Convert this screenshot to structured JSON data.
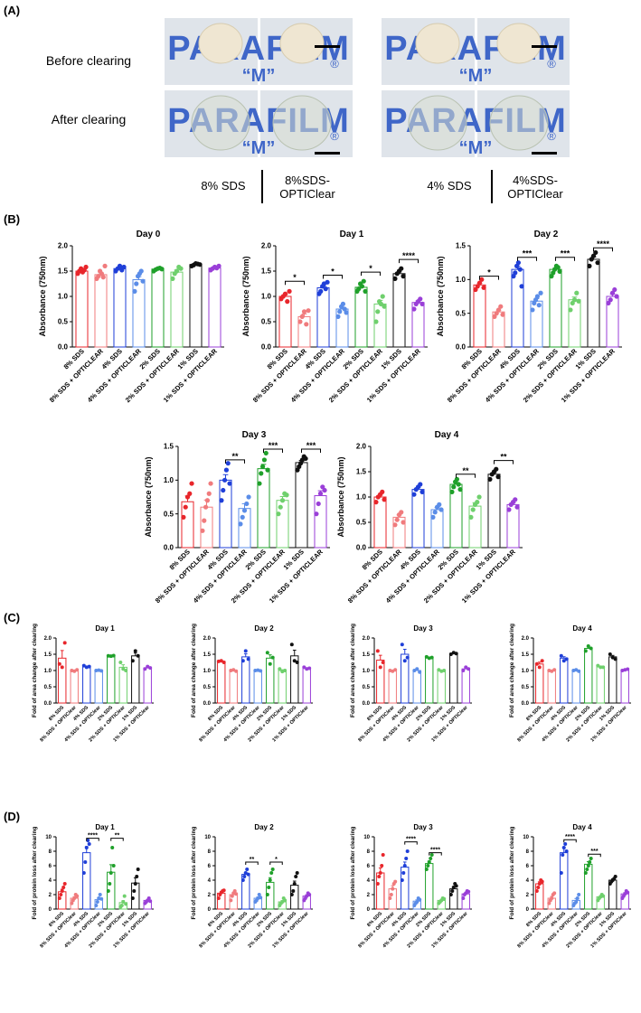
{
  "panels": {
    "A": {
      "letter": "(A)",
      "row_labels": [
        "Before clearing",
        "After clearing"
      ],
      "photo_text": "PARAFILM",
      "registered_mark": "®",
      "condition_labels": [
        "8% SDS",
        "8%SDS-\nOPTIClear",
        "4% SDS",
        "4%SDS-\nOPTIClear"
      ]
    },
    "B": {
      "letter": "(B)"
    },
    "C": {
      "letter": "(C)"
    },
    "D": {
      "letter": "(D)"
    }
  },
  "categories_B": [
    "8% SDS",
    "8% SDS + OPTICLEAR",
    "4% SDS",
    "4% SDS + OPTICLEAR",
    "2% SDS",
    "2% SDS + OPTICLEAR",
    "1% SDS",
    "1% SDS + OPTICLEAR"
  ],
  "categories_CD": [
    "8% SDS",
    "8% SDS + OPTIClear",
    "4% SDS",
    "4% SDS + OPTIClear",
    "2% SDS",
    "2% SDS + OPTIClear",
    "1% SDS",
    "1% SDS + OPTIClear"
  ],
  "colors": [
    "#e8262b",
    "#f07b7d",
    "#1f3fd8",
    "#5b8de8",
    "#1fa02a",
    "#6fd06d",
    "#111111",
    "#9a3fd8"
  ],
  "chart_data": [
    {
      "panel": "B",
      "type": "bar",
      "title": "Day 0",
      "ylabel": "Absorbance (750nm)",
      "ylim": [
        0,
        2.0
      ],
      "yticks": [
        0.0,
        0.5,
        1.0,
        1.5,
        2.0
      ],
      "values": [
        1.5,
        1.43,
        1.55,
        1.33,
        1.54,
        1.48,
        1.63,
        1.56
      ],
      "points": [
        [
          1.45,
          1.5,
          1.55,
          1.48,
          1.52,
          1.58
        ],
        [
          1.35,
          1.4,
          1.5,
          1.45,
          1.38,
          1.6
        ],
        [
          1.5,
          1.55,
          1.6,
          1.52,
          1.58
        ],
        [
          1.1,
          1.25,
          1.4,
          1.45,
          1.5,
          1.3
        ],
        [
          1.5,
          1.53,
          1.55,
          1.56,
          1.54
        ],
        [
          1.35,
          1.45,
          1.5,
          1.58,
          1.55
        ],
        [
          1.6,
          1.62,
          1.65,
          1.64,
          1.63
        ],
        [
          1.52,
          1.55,
          1.58,
          1.56,
          1.6
        ]
      ],
      "sig": []
    },
    {
      "panel": "B",
      "type": "bar",
      "title": "Day 1",
      "ylabel": "Absorbance (750nm)",
      "ylim": [
        0,
        2.0
      ],
      "yticks": [
        0.0,
        0.5,
        1.0,
        1.5,
        2.0
      ],
      "values": [
        1.0,
        0.6,
        1.17,
        0.75,
        1.18,
        0.85,
        1.45,
        0.88
      ],
      "points": [
        [
          0.95,
          1.0,
          1.05,
          0.9,
          1.1
        ],
        [
          0.5,
          0.6,
          0.7,
          0.45,
          0.72
        ],
        [
          1.05,
          1.1,
          1.2,
          1.25,
          1.15,
          1.28
        ],
        [
          0.6,
          0.7,
          0.8,
          0.85,
          0.75,
          0.68
        ],
        [
          1.1,
          1.15,
          1.25,
          1.2,
          1.3,
          1.1
        ],
        [
          0.5,
          0.7,
          0.9,
          0.85,
          1.0,
          0.8
        ],
        [
          1.35,
          1.45,
          1.5,
          1.55,
          1.4
        ],
        [
          0.75,
          0.85,
          0.9,
          0.95,
          0.85
        ]
      ],
      "sig": [
        {
          "a": 0,
          "b": 1,
          "y": 1.3,
          "label": "*"
        },
        {
          "a": 2,
          "b": 3,
          "y": 1.42,
          "label": "*"
        },
        {
          "a": 4,
          "b": 5,
          "y": 1.48,
          "label": "*"
        },
        {
          "a": 6,
          "b": 7,
          "y": 1.73,
          "label": "****"
        }
      ]
    },
    {
      "panel": "B",
      "type": "bar",
      "title": "Day 2",
      "ylabel": "Absorbance (750nm)",
      "ylim": [
        0,
        1.5
      ],
      "yticks": [
        0.0,
        0.5,
        1.0,
        1.5
      ],
      "values": [
        0.92,
        0.52,
        1.15,
        0.68,
        1.15,
        0.7,
        1.3,
        0.75
      ],
      "points": [
        [
          0.85,
          0.9,
          0.95,
          1.0,
          0.88
        ],
        [
          0.45,
          0.5,
          0.55,
          0.6,
          0.48
        ],
        [
          1.05,
          1.1,
          1.2,
          1.25,
          1.15,
          0.9
        ],
        [
          0.55,
          0.65,
          0.7,
          0.75,
          0.62,
          0.8
        ],
        [
          1.05,
          1.1,
          1.15,
          1.2,
          1.18,
          1.12
        ],
        [
          0.55,
          0.65,
          0.7,
          0.8,
          0.68
        ],
        [
          1.2,
          1.3,
          1.35,
          1.4,
          1.25
        ],
        [
          0.65,
          0.7,
          0.8,
          0.85,
          0.75
        ]
      ],
      "sig": [
        {
          "a": 0,
          "b": 1,
          "y": 1.05,
          "label": "*"
        },
        {
          "a": 2,
          "b": 3,
          "y": 1.33,
          "label": "***"
        },
        {
          "a": 4,
          "b": 5,
          "y": 1.33,
          "label": "***"
        },
        {
          "a": 6,
          "b": 7,
          "y": 1.47,
          "label": "****"
        }
      ]
    },
    {
      "panel": "B",
      "type": "bar",
      "title": "Day 3",
      "ylabel": "Absorbance (750nm)",
      "ylim": [
        0,
        1.5
      ],
      "yticks": [
        0.0,
        0.5,
        1.0,
        1.5
      ],
      "values": [
        0.68,
        0.6,
        1.0,
        0.58,
        1.17,
        0.7,
        1.26,
        0.77
      ],
      "points": [
        [
          0.45,
          0.6,
          0.75,
          0.8,
          0.95
        ],
        [
          0.25,
          0.4,
          0.6,
          0.7,
          0.8,
          0.95
        ],
        [
          0.7,
          0.85,
          1.0,
          1.15,
          1.25,
          0.95
        ],
        [
          0.35,
          0.45,
          0.55,
          0.65,
          0.75
        ],
        [
          0.95,
          1.1,
          1.2,
          1.3,
          1.4,
          1.15
        ],
        [
          0.5,
          0.6,
          0.7,
          0.8,
          0.78
        ],
        [
          1.15,
          1.2,
          1.25,
          1.3,
          1.35,
          1.32
        ],
        [
          0.5,
          0.65,
          0.8,
          0.9,
          0.85
        ]
      ],
      "sig": [
        {
          "a": 2,
          "b": 3,
          "y": 1.3,
          "label": "**"
        },
        {
          "a": 4,
          "b": 5,
          "y": 1.46,
          "label": "***"
        },
        {
          "a": 6,
          "b": 7,
          "y": 1.46,
          "label": "***"
        }
      ]
    },
    {
      "panel": "B",
      "type": "bar",
      "title": "Day 4",
      "ylabel": "Absorbance (750nm)",
      "ylim": [
        0,
        2.0
      ],
      "yticks": [
        0.0,
        0.5,
        1.0,
        1.5,
        2.0
      ],
      "values": [
        1.0,
        0.6,
        1.15,
        0.75,
        1.25,
        0.82,
        1.45,
        0.85
      ],
      "points": [
        [
          0.9,
          1.0,
          1.05,
          1.1,
          0.95
        ],
        [
          0.45,
          0.55,
          0.65,
          0.7,
          0.5
        ],
        [
          1.05,
          1.15,
          1.2,
          1.25,
          1.1
        ],
        [
          0.6,
          0.7,
          0.8,
          0.85,
          0.75
        ],
        [
          1.1,
          1.2,
          1.3,
          1.35,
          1.25,
          1.15
        ],
        [
          0.6,
          0.75,
          0.85,
          0.9,
          1.0
        ],
        [
          1.35,
          1.45,
          1.5,
          1.55,
          1.4
        ],
        [
          0.75,
          0.85,
          0.9,
          0.95,
          0.8
        ]
      ],
      "sig": [
        {
          "a": 4,
          "b": 5,
          "y": 1.45,
          "label": "**"
        },
        {
          "a": 6,
          "b": 7,
          "y": 1.72,
          "label": "**"
        }
      ]
    },
    {
      "panel": "C",
      "type": "bar",
      "title": "Day 1",
      "ylabel": "Fold of area change after clearing",
      "ylim": [
        0,
        2.0
      ],
      "yticks": [
        0.0,
        0.5,
        1.0,
        1.5,
        2.0
      ],
      "values": [
        1.38,
        1.0,
        1.12,
        1.0,
        1.42,
        1.1,
        1.45,
        1.08
      ],
      "points": [
        [
          1.2,
          1.1,
          1.85
        ],
        [
          1.0,
          0.98,
          1.02
        ],
        [
          1.15,
          1.1,
          1.12
        ],
        [
          1.0,
          1.01,
          0.99
        ],
        [
          1.45,
          1.44,
          1.46
        ],
        [
          1.25,
          1.05,
          1.0
        ],
        [
          1.3,
          1.6,
          1.45
        ],
        [
          1.05,
          1.12,
          1.08
        ]
      ],
      "sig": []
    },
    {
      "panel": "C",
      "type": "bar",
      "title": "Day 2",
      "ylabel": "Fold of area change after clearing",
      "ylim": [
        0,
        2.0
      ],
      "yticks": [
        0.0,
        0.5,
        1.0,
        1.5,
        2.0
      ],
      "values": [
        1.28,
        1.0,
        1.42,
        1.0,
        1.38,
        1.0,
        1.45,
        1.07
      ],
      "points": [
        [
          1.28,
          1.3,
          1.25
        ],
        [
          1.0,
          1.02,
          0.98
        ],
        [
          1.3,
          1.6,
          1.35
        ],
        [
          1.0,
          1.01,
          0.99
        ],
        [
          1.55,
          1.2,
          1.4
        ],
        [
          1.05,
          0.97,
          1.0
        ],
        [
          1.8,
          1.3,
          1.25
        ],
        [
          1.1,
          1.05,
          1.07
        ]
      ],
      "sig": []
    },
    {
      "panel": "C",
      "type": "bar",
      "title": "Day 3",
      "ylabel": "Fold of area change after clearing",
      "ylim": [
        0,
        2.0
      ],
      "yticks": [
        0.0,
        0.5,
        1.0,
        1.5,
        2.0
      ],
      "values": [
        1.32,
        1.0,
        1.5,
        1.0,
        1.4,
        1.0,
        1.52,
        1.05
      ],
      "points": [
        [
          1.6,
          1.1,
          1.25
        ],
        [
          1.0,
          0.98,
          1.02
        ],
        [
          1.8,
          1.3,
          1.4
        ],
        [
          1.0,
          1.05,
          0.95
        ],
        [
          1.42,
          1.38,
          1.4
        ],
        [
          1.02,
          0.98,
          1.0
        ],
        [
          1.5,
          1.55,
          1.52
        ],
        [
          1.0,
          1.1,
          1.05
        ]
      ],
      "sig": []
    },
    {
      "panel": "C",
      "type": "bar",
      "title": "Day 4",
      "ylabel": "Fold of area change after clearing",
      "ylim": [
        0,
        2.0
      ],
      "yticks": [
        0.0,
        0.5,
        1.0,
        1.5,
        2.0
      ],
      "values": [
        1.2,
        1.0,
        1.38,
        1.0,
        1.68,
        1.12,
        1.42,
        1.02
      ],
      "points": [
        [
          1.2,
          1.1,
          1.3
        ],
        [
          1.0,
          0.98,
          1.02
        ],
        [
          1.45,
          1.3,
          1.35
        ],
        [
          1.0,
          1.02,
          0.98
        ],
        [
          1.6,
          1.75,
          1.68
        ],
        [
          1.15,
          1.1,
          1.1
        ],
        [
          1.5,
          1.4,
          1.35
        ],
        [
          1.0,
          1.02,
          1.04
        ]
      ],
      "sig": []
    },
    {
      "panel": "D",
      "type": "bar",
      "title": "Day 1",
      "ylabel": "Fold of protein loss after clearing",
      "ylim": [
        0,
        10
      ],
      "yticks": [
        0,
        2,
        4,
        6,
        8,
        10
      ],
      "values": [
        2.4,
        1.5,
        7.8,
        1.3,
        5.1,
        0.9,
        3.6,
        1.2
      ],
      "points": [
        [
          1.5,
          2.0,
          2.5,
          3.0,
          3.5
        ],
        [
          0.8,
          1.2,
          1.5,
          2.0,
          1.8
        ],
        [
          5.0,
          6.5,
          8.5,
          9.5,
          9.0
        ],
        [
          0.5,
          1.0,
          1.5,
          2.0,
          1.4
        ],
        [
          2.5,
          3.5,
          5.0,
          8.5,
          6.0
        ],
        [
          0.3,
          0.5,
          1.0,
          1.8,
          0.7
        ],
        [
          1.5,
          2.5,
          3.5,
          4.5,
          5.5
        ],
        [
          0.8,
          1.0,
          1.2,
          1.5,
          1.1
        ]
      ],
      "sig": [
        {
          "a": 2,
          "b": 3,
          "y": 9.8,
          "label": "****"
        },
        {
          "a": 4,
          "b": 5,
          "y": 9.8,
          "label": "**"
        }
      ]
    },
    {
      "panel": "D",
      "type": "bar",
      "title": "Day 2",
      "ylabel": "Fold of protein loss after clearing",
      "ylim": [
        0,
        10
      ],
      "yticks": [
        0,
        2,
        4,
        6,
        8,
        10
      ],
      "values": [
        2.2,
        2.0,
        4.8,
        1.5,
        3.7,
        1.0,
        3.3,
        1.8
      ],
      "points": [
        [
          1.5,
          2.0,
          2.3,
          2.5,
          2.6
        ],
        [
          1.2,
          1.8,
          2.2,
          2.5,
          2.1
        ],
        [
          4.0,
          4.5,
          5.0,
          5.5,
          4.8
        ],
        [
          1.0,
          1.2,
          1.5,
          2.0,
          1.6
        ],
        [
          2.0,
          3.0,
          4.0,
          5.0,
          5.5
        ],
        [
          0.5,
          0.8,
          1.0,
          1.5,
          1.2
        ],
        [
          2.0,
          2.5,
          3.5,
          4.5,
          5.0
        ],
        [
          1.2,
          1.5,
          1.8,
          2.2,
          2.0
        ]
      ],
      "sig": [
        {
          "a": 2,
          "b": 3,
          "y": 6.5,
          "label": "**"
        },
        {
          "a": 4,
          "b": 5,
          "y": 6.5,
          "label": "*"
        }
      ]
    },
    {
      "panel": "D",
      "type": "bar",
      "title": "Day 3",
      "ylabel": "Fold of protein loss after clearing",
      "ylim": [
        0,
        10
      ],
      "yticks": [
        0,
        2,
        4,
        6,
        8,
        10
      ],
      "values": [
        5.0,
        2.8,
        5.8,
        1.1,
        6.3,
        1.2,
        2.8,
        2.1
      ],
      "points": [
        [
          3.5,
          4.5,
          5.0,
          6.0,
          7.5
        ],
        [
          1.5,
          2.0,
          2.8,
          3.5,
          3.8
        ],
        [
          4.0,
          5.0,
          6.0,
          7.0,
          8.0
        ],
        [
          0.5,
          0.8,
          1.0,
          1.5,
          1.3
        ],
        [
          5.5,
          6.0,
          6.5,
          7.0,
          7.5
        ],
        [
          0.8,
          1.0,
          1.2,
          1.5,
          1.4
        ],
        [
          2.0,
          2.5,
          3.0,
          3.5,
          3.2
        ],
        [
          1.5,
          2.0,
          2.2,
          2.5,
          2.4
        ]
      ],
      "sig": [
        {
          "a": 2,
          "b": 3,
          "y": 9.3,
          "label": "****"
        },
        {
          "a": 4,
          "b": 5,
          "y": 7.8,
          "label": "****"
        }
      ]
    },
    {
      "panel": "D",
      "type": "bar",
      "title": "Day 4",
      "ylabel": "Fold of protein loss after clearing",
      "ylim": [
        0,
        10
      ],
      "yticks": [
        0,
        2,
        4,
        6,
        8,
        10
      ],
      "values": [
        3.5,
        1.5,
        7.8,
        1.2,
        6.2,
        1.7,
        4.0,
        2.1
      ],
      "points": [
        [
          2.5,
          3.0,
          3.5,
          4.0,
          3.8
        ],
        [
          0.8,
          1.2,
          1.5,
          2.0,
          2.2
        ],
        [
          5.0,
          7.5,
          8.5,
          9.0,
          8.0
        ],
        [
          0.5,
          0.8,
          1.0,
          1.5,
          2.0
        ],
        [
          5.0,
          5.5,
          6.0,
          6.5,
          7.0
        ],
        [
          1.2,
          1.5,
          1.7,
          2.0,
          1.8
        ],
        [
          3.5,
          3.8,
          4.0,
          4.2,
          4.5
        ],
        [
          1.5,
          1.8,
          2.1,
          2.5,
          2.3
        ]
      ],
      "sig": [
        {
          "a": 2,
          "b": 3,
          "y": 9.6,
          "label": "****"
        },
        {
          "a": 4,
          "b": 5,
          "y": 7.6,
          "label": "***"
        }
      ]
    }
  ]
}
